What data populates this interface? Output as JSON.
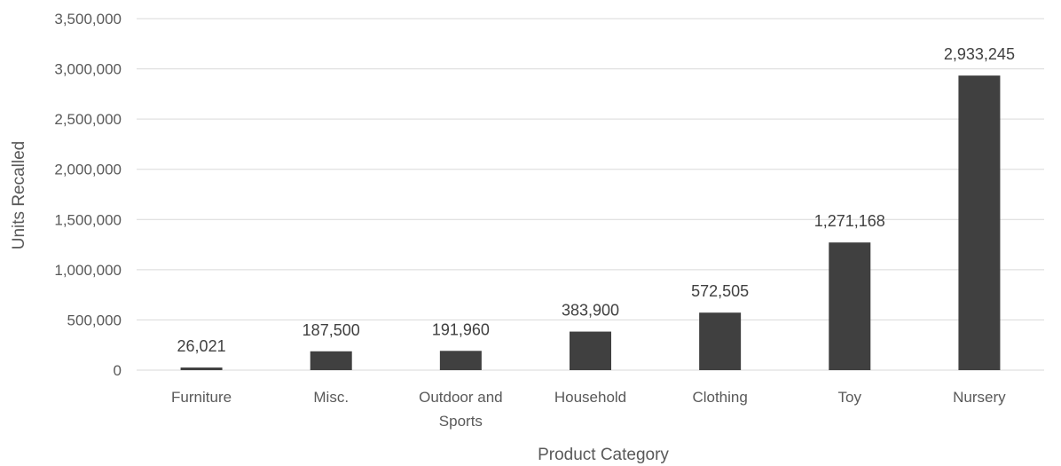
{
  "chart_data": {
    "type": "bar",
    "categories": [
      "Furniture",
      "Misc.",
      "Outdoor and Sports",
      "Household",
      "Clothing",
      "Toy",
      "Nursery"
    ],
    "category_lines": [
      [
        "Furniture"
      ],
      [
        "Misc."
      ],
      [
        "Outdoor and",
        "Sports"
      ],
      [
        "Household"
      ],
      [
        "Clothing"
      ],
      [
        "Toy"
      ],
      [
        "Nursery"
      ]
    ],
    "values": [
      26021,
      187500,
      191960,
      383900,
      572505,
      1271168,
      2933245
    ],
    "data_labels": [
      "26,021",
      "187,500",
      "191,960",
      "383,900",
      "572,505",
      "1,271,168",
      "2,933,245"
    ],
    "xlabel": "Product Category",
    "ylabel": "Units Recalled",
    "ylim": [
      0,
      3500000
    ],
    "yticks": [
      0,
      500000,
      1000000,
      1500000,
      2000000,
      2500000,
      3000000,
      3500000
    ],
    "ytick_labels": [
      "0",
      "500,000",
      "1,000,000",
      "1,500,000",
      "2,000,000",
      "2,500,000",
      "3,000,000",
      "3,500,000"
    ],
    "grid": true,
    "bar_color": "#404040",
    "grid_color": "#d9d9d9"
  }
}
